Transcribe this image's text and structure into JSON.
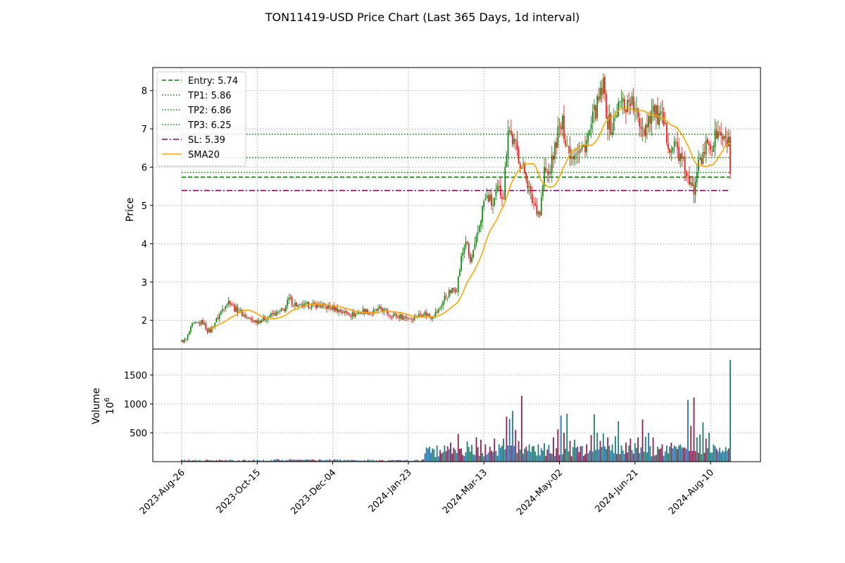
{
  "chart_data": {
    "type": "candlestick",
    "title": "TON11419-USD Price Chart (Last 365 Days, 1d interval)",
    "x_ticks": [
      "2023-Aug-26",
      "2023-Oct-15",
      "2023-Dec-04",
      "2024-Jan-23",
      "2024-Mar-13",
      "2024-May-02",
      "2024-Jun-21",
      "2024-Aug-10"
    ],
    "price_panel": {
      "ylabel": "Price",
      "ylim": [
        1.25,
        8.6
      ],
      "yticks": [
        2,
        3,
        4,
        5,
        6,
        7,
        8
      ],
      "grid": true,
      "legend_position": "top-left",
      "levels": [
        {
          "name": "Entry: 5.74",
          "value": 5.74,
          "style": "dashed",
          "color": "#008000"
        },
        {
          "name": "TP1: 5.86",
          "value": 5.86,
          "style": "dotted",
          "color": "#008000"
        },
        {
          "name": "TP2: 6.86",
          "value": 6.86,
          "style": "dotted",
          "color": "#008000"
        },
        {
          "name": "TP3: 6.25",
          "value": 6.25,
          "style": "dotted",
          "color": "#008000"
        },
        {
          "name": "SL: 5.39",
          "value": 5.39,
          "style": "dashdot",
          "color": "#800080"
        }
      ],
      "sma_name": "SMA20",
      "sma_color": "#ffa500",
      "up_color": "#008000",
      "down_color": "#ff0000",
      "close_anchors": [
        [
          0,
          1.45
        ],
        [
          3,
          1.5
        ],
        [
          7,
          1.88
        ],
        [
          10,
          1.9
        ],
        [
          14,
          1.95
        ],
        [
          17,
          1.75
        ],
        [
          19,
          1.72
        ],
        [
          22,
          1.95
        ],
        [
          25,
          2.15
        ],
        [
          29,
          2.45
        ],
        [
          32,
          2.5
        ],
        [
          35,
          2.3
        ],
        [
          38,
          2.25
        ],
        [
          42,
          2.1
        ],
        [
          46,
          2.0
        ],
        [
          50,
          1.98
        ],
        [
          55,
          2.05
        ],
        [
          60,
          2.15
        ],
        [
          64,
          2.2
        ],
        [
          68,
          2.3
        ],
        [
          71,
          2.55
        ],
        [
          74,
          2.45
        ],
        [
          78,
          2.35
        ],
        [
          84,
          2.4
        ],
        [
          90,
          2.4
        ],
        [
          96,
          2.35
        ],
        [
          102,
          2.3
        ],
        [
          108,
          2.2
        ],
        [
          114,
          2.15
        ],
        [
          120,
          2.25
        ],
        [
          126,
          2.2
        ],
        [
          132,
          2.3
        ],
        [
          138,
          2.15
        ],
        [
          145,
          2.1
        ],
        [
          152,
          2.05
        ],
        [
          160,
          2.2
        ],
        [
          165,
          2.1
        ],
        [
          170,
          2.25
        ],
        [
          174,
          2.6
        ],
        [
          178,
          2.75
        ],
        [
          182,
          2.85
        ],
        [
          185,
          3.6
        ],
        [
          188,
          4.1
        ],
        [
          191,
          3.5
        ],
        [
          194,
          3.9
        ],
        [
          197,
          4.5
        ],
        [
          200,
          5.1
        ],
        [
          203,
          5.2
        ],
        [
          206,
          5.0
        ],
        [
          209,
          5.4
        ],
        [
          213,
          5.3
        ],
        [
          216,
          7.1
        ],
        [
          219,
          6.7
        ],
        [
          222,
          6.4
        ],
        [
          225,
          6.0
        ],
        [
          228,
          5.8
        ],
        [
          231,
          5.2
        ],
        [
          234,
          5.0
        ],
        [
          237,
          4.8
        ],
        [
          240,
          5.9
        ],
        [
          243,
          5.8
        ],
        [
          246,
          6.3
        ],
        [
          249,
          6.9
        ],
        [
          252,
          7.1
        ],
        [
          255,
          6.6
        ],
        [
          258,
          6.3
        ],
        [
          261,
          6.5
        ],
        [
          264,
          6.4
        ],
        [
          267,
          6.6
        ],
        [
          270,
          6.9
        ],
        [
          273,
          7.4
        ],
        [
          276,
          7.7
        ],
        [
          279,
          8.1
        ],
        [
          282,
          7.2
        ],
        [
          285,
          7.0
        ],
        [
          288,
          7.5
        ],
        [
          291,
          7.7
        ],
        [
          294,
          7.6
        ],
        [
          297,
          7.8
        ],
        [
          300,
          7.4
        ],
        [
          303,
          7.2
        ],
        [
          306,
          7.0
        ],
        [
          309,
          7.3
        ],
        [
          312,
          7.5
        ],
        [
          315,
          7.3
        ],
        [
          318,
          7.2
        ],
        [
          321,
          6.8
        ],
        [
          324,
          6.5
        ],
        [
          327,
          6.6
        ],
        [
          330,
          6.2
        ],
        [
          333,
          6.0
        ],
        [
          336,
          5.5
        ],
        [
          339,
          5.4
        ],
        [
          342,
          6.4
        ],
        [
          345,
          6.2
        ],
        [
          348,
          6.7
        ],
        [
          351,
          6.5
        ],
        [
          354,
          6.9
        ],
        [
          357,
          6.8
        ],
        [
          360,
          6.6
        ],
        [
          362,
          6.7
        ],
        [
          363,
          5.85
        ]
      ]
    },
    "volume_panel": {
      "ylabel": "Volume",
      "scale": "10^6",
      "ylim": [
        0,
        1950
      ],
      "yticks": [
        500,
        1000,
        1500
      ],
      "grid": true,
      "colors": [
        "#1f77b4",
        "#1f7f6e",
        "#8b2252"
      ],
      "spikes": [
        [
          160,
          40
        ],
        [
          169,
          280
        ],
        [
          175,
          180
        ],
        [
          178,
          330
        ],
        [
          181,
          210
        ],
        [
          183,
          480
        ],
        [
          185,
          230
        ],
        [
          189,
          350
        ],
        [
          192,
          290
        ],
        [
          195,
          420
        ],
        [
          198,
          380
        ],
        [
          201,
          300
        ],
        [
          204,
          260
        ],
        [
          207,
          400
        ],
        [
          210,
          300
        ],
        [
          213,
          400
        ],
        [
          215,
          780
        ],
        [
          217,
          740
        ],
        [
          219,
          880
        ],
        [
          221,
          550
        ],
        [
          223,
          360
        ],
        [
          225,
          1140
        ],
        [
          228,
          260
        ],
        [
          230,
          300
        ],
        [
          233,
          270
        ],
        [
          236,
          300
        ],
        [
          240,
          320
        ],
        [
          243,
          290
        ],
        [
          246,
          420
        ],
        [
          249,
          560
        ],
        [
          251,
          800
        ],
        [
          253,
          500
        ],
        [
          255,
          830
        ],
        [
          257,
          360
        ],
        [
          260,
          380
        ],
        [
          262,
          260
        ],
        [
          265,
          270
        ],
        [
          268,
          300
        ],
        [
          271,
          460
        ],
        [
          273,
          820
        ],
        [
          275,
          500
        ],
        [
          277,
          360
        ],
        [
          279,
          490
        ],
        [
          282,
          420
        ],
        [
          285,
          300
        ],
        [
          287,
          440
        ],
        [
          289,
          700
        ],
        [
          291,
          280
        ],
        [
          294,
          330
        ],
        [
          297,
          400
        ],
        [
          300,
          320
        ],
        [
          302,
          420
        ],
        [
          305,
          730
        ],
        [
          307,
          430
        ],
        [
          309,
          500
        ],
        [
          312,
          420
        ],
        [
          315,
          260
        ],
        [
          318,
          300
        ],
        [
          321,
          280
        ],
        [
          324,
          330
        ],
        [
          327,
          260
        ],
        [
          330,
          300
        ],
        [
          332,
          240
        ],
        [
          335,
          1070
        ],
        [
          337,
          620
        ],
        [
          339,
          1110
        ],
        [
          341,
          420
        ],
        [
          343,
          470
        ],
        [
          345,
          680
        ],
        [
          347,
          400
        ],
        [
          349,
          500
        ],
        [
          352,
          300
        ],
        [
          356,
          240
        ],
        [
          360,
          250
        ],
        [
          363,
          1760
        ]
      ]
    }
  }
}
